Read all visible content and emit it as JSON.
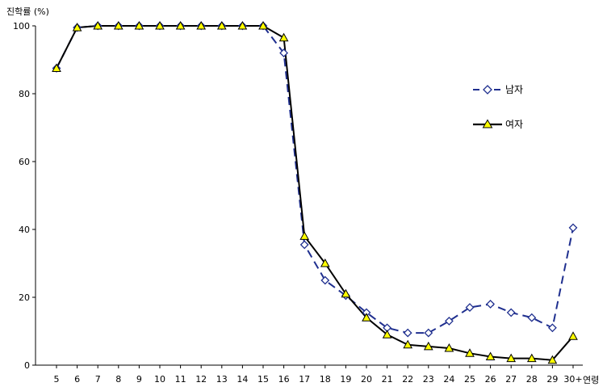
{
  "chart_data": {
    "type": "line",
    "ylabel": "진학률 (%)",
    "xlabel": "연령",
    "categories": [
      "5",
      "6",
      "7",
      "8",
      "9",
      "10",
      "11",
      "12",
      "13",
      "14",
      "15",
      "16",
      "17",
      "18",
      "19",
      "20",
      "21",
      "22",
      "23",
      "24",
      "25",
      "26",
      "27",
      "28",
      "29",
      "30+"
    ],
    "ylim": [
      0,
      100
    ],
    "yticks": [
      0,
      20,
      40,
      60,
      80,
      100
    ],
    "grid": false,
    "legend_position": "right",
    "series": [
      {
        "name": "남자",
        "color": "#1f2f8f",
        "marker": "diamond-open",
        "line_style": "dashed",
        "values": [
          87.5,
          99.5,
          100,
          100,
          100,
          100,
          100,
          100,
          100,
          100,
          100,
          92,
          35.5,
          25,
          20.5,
          15.5,
          11,
          9.5,
          9.5,
          13,
          17,
          18,
          15.5,
          14,
          11,
          40.5
        ]
      },
      {
        "name": "여자",
        "color": "#000000",
        "marker_fill": "#ffff00",
        "marker": "triangle-filled",
        "line_style": "solid",
        "values": [
          87.5,
          99.5,
          100,
          100,
          100,
          100,
          100,
          100,
          100,
          100,
          100,
          96.5,
          38,
          30,
          21,
          14,
          9,
          6,
          5.5,
          5,
          3.5,
          2.5,
          2,
          2,
          1.5,
          8.5
        ]
      }
    ]
  }
}
